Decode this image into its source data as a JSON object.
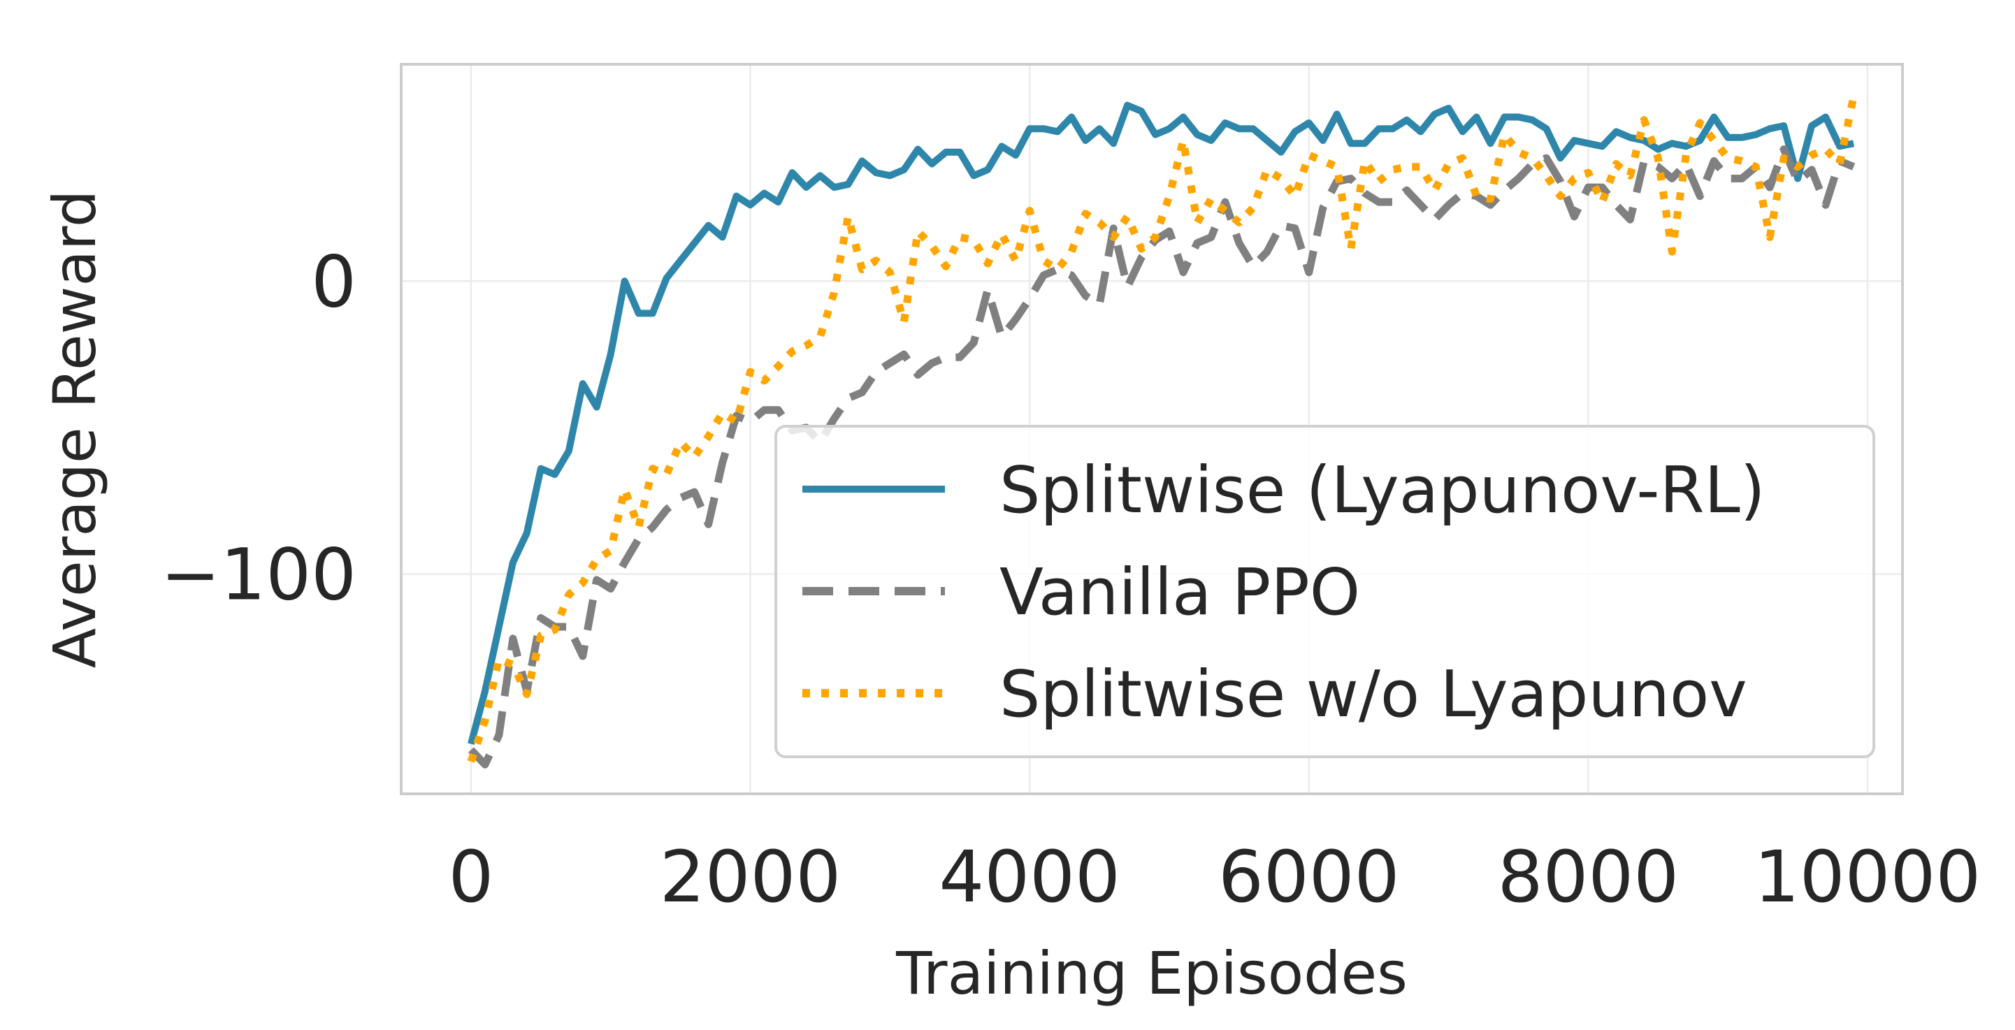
{
  "chart_data": {
    "type": "line",
    "xlabel": "Training Episodes",
    "ylabel": "Average Reward",
    "xlim": [
      -500,
      10250
    ],
    "ylim": [
      -175,
      74
    ],
    "xticks": [
      0,
      2000,
      4000,
      6000,
      8000,
      10000
    ],
    "xtick_labels": [
      "0",
      "2000",
      "4000",
      "6000",
      "8000",
      "10000"
    ],
    "yticks": [
      0,
      -100
    ],
    "ytick_labels": [
      "0",
      "−100"
    ],
    "grid": true,
    "legend_position": "lower-right",
    "colors": {
      "splitwise": "#2e86ab",
      "vanilla": "#808080",
      "no_lyapunov": "#ffa500",
      "grid": "#ebebeb",
      "frame": "#cccccc"
    },
    "x": [
      0,
      100,
      200,
      300,
      400,
      500,
      600,
      700,
      800,
      900,
      1000,
      1100,
      1200,
      1300,
      1400,
      1500,
      1600,
      1700,
      1800,
      1900,
      2000,
      2100,
      2200,
      2300,
      2400,
      2500,
      2600,
      2700,
      2800,
      2900,
      3000,
      3100,
      3200,
      3300,
      3400,
      3500,
      3600,
      3700,
      3800,
      3900,
      4000,
      4100,
      4200,
      4300,
      4400,
      4500,
      4600,
      4700,
      4800,
      4900,
      5000,
      5100,
      5200,
      5300,
      5400,
      5500,
      5600,
      5700,
      5800,
      5900,
      6000,
      6100,
      6200,
      6300,
      6400,
      6500,
      6600,
      6700,
      6800,
      6900,
      7000,
      7100,
      7200,
      7300,
      7400,
      7500,
      7600,
      7700,
      7800,
      7900,
      8000,
      8100,
      8200,
      8300,
      8400,
      8500,
      8600,
      8700,
      8800,
      8900,
      9000,
      9100,
      9200,
      9300,
      9400,
      9500,
      9600,
      9700,
      9800,
      9900
    ],
    "series": [
      {
        "name": "Splitwise (Lyapunov-RL)",
        "style": "solid",
        "color": "#2e86ab",
        "values": [
          -158,
          -140,
          -118,
          -96,
          -86,
          -64,
          -66,
          -58,
          -35,
          -43,
          -25,
          0,
          -11,
          -11,
          1,
          7,
          13,
          19,
          15,
          29,
          26,
          30,
          27,
          37,
          32,
          36,
          32,
          33,
          41,
          37,
          36,
          38,
          45,
          40,
          44,
          44,
          36,
          38,
          46,
          43,
          52,
          52,
          51,
          56,
          48,
          52,
          47,
          60,
          58,
          50,
          52,
          56,
          50,
          48,
          54,
          52,
          52,
          48,
          44,
          51,
          54,
          48,
          57,
          47,
          47,
          52,
          52,
          55,
          51,
          57,
          59,
          51,
          56,
          47,
          56,
          56,
          55,
          52,
          42,
          48,
          47,
          46,
          51,
          49,
          48,
          45,
          47,
          46,
          48,
          56,
          49,
          49,
          50,
          52,
          53,
          35,
          53,
          56,
          46,
          47
        ]
      },
      {
        "name": "Vanilla PPO",
        "style": "dashed",
        "color": "#808080",
        "values": [
          -160,
          -165,
          -155,
          -122,
          -140,
          -115,
          -118,
          -118,
          -128,
          -102,
          -105,
          -96,
          -88,
          -84,
          -78,
          -74,
          -72,
          -83,
          -62,
          -46,
          -48,
          -44,
          -44,
          -51,
          -50,
          -55,
          -47,
          -40,
          -38,
          -31,
          -28,
          -25,
          -32,
          -28,
          -26,
          -26,
          -21,
          -3,
          -19,
          -13,
          -6,
          2,
          4,
          2,
          -5,
          -8,
          18,
          -2,
          8,
          14,
          17,
          3,
          13,
          15,
          27,
          13,
          5,
          10,
          19,
          18,
          3,
          25,
          34,
          35,
          30,
          27,
          27,
          31,
          26,
          21,
          26,
          30,
          29,
          26,
          31,
          35,
          40,
          42,
          34,
          22,
          32,
          32,
          26,
          21,
          41,
          39,
          35,
          40,
          29,
          41,
          35,
          35,
          39,
          32,
          45,
          34,
          38,
          26,
          41,
          39
        ]
      },
      {
        "name": "Splitwise w/o Lyapunov",
        "style": "dotted",
        "color": "#ffa500",
        "values": [
          -164,
          -150,
          -129,
          -131,
          -141,
          -121,
          -119,
          -107,
          -103,
          -95,
          -92,
          -71,
          -84,
          -64,
          -66,
          -55,
          -60,
          -53,
          -45,
          -48,
          -31,
          -34,
          -29,
          -24,
          -22,
          -19,
          -4,
          22,
          4,
          7,
          3,
          -14,
          17,
          12,
          5,
          15,
          14,
          6,
          16,
          7,
          24,
          7,
          4,
          10,
          23,
          20,
          15,
          22,
          11,
          15,
          29,
          48,
          20,
          28,
          24,
          20,
          25,
          38,
          35,
          29,
          43,
          41,
          39,
          11,
          41,
          34,
          38,
          39,
          39,
          31,
          40,
          42,
          29,
          28,
          50,
          44,
          42,
          36,
          29,
          35,
          37,
          27,
          40,
          36,
          55,
          42,
          10,
          43,
          54,
          48,
          42,
          41,
          39,
          15,
          42,
          39,
          43,
          45,
          40,
          63
        ]
      }
    ]
  }
}
